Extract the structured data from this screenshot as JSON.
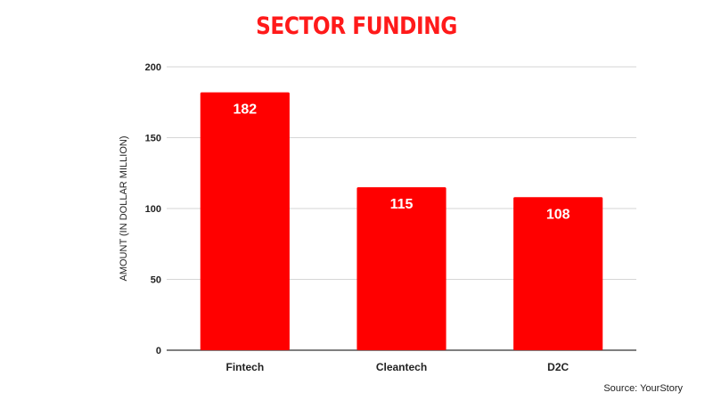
{
  "chart_data": {
    "type": "bar",
    "title": "SECTOR FUNDING",
    "categories": [
      "Fintech",
      "Cleantech",
      "D2C"
    ],
    "values": [
      182,
      115,
      108
    ],
    "data_labels": [
      "182",
      "115",
      "108"
    ],
    "xlabel": "",
    "ylabel": "AMOUNT (IN DOLLAR MILLION)",
    "ylim": [
      0,
      200
    ],
    "yticks": [
      0,
      50,
      100,
      150,
      200
    ],
    "grid": true,
    "bar_color": "#ff0000",
    "title_color": "#ff1a1a"
  },
  "source": "Source: YourStory"
}
